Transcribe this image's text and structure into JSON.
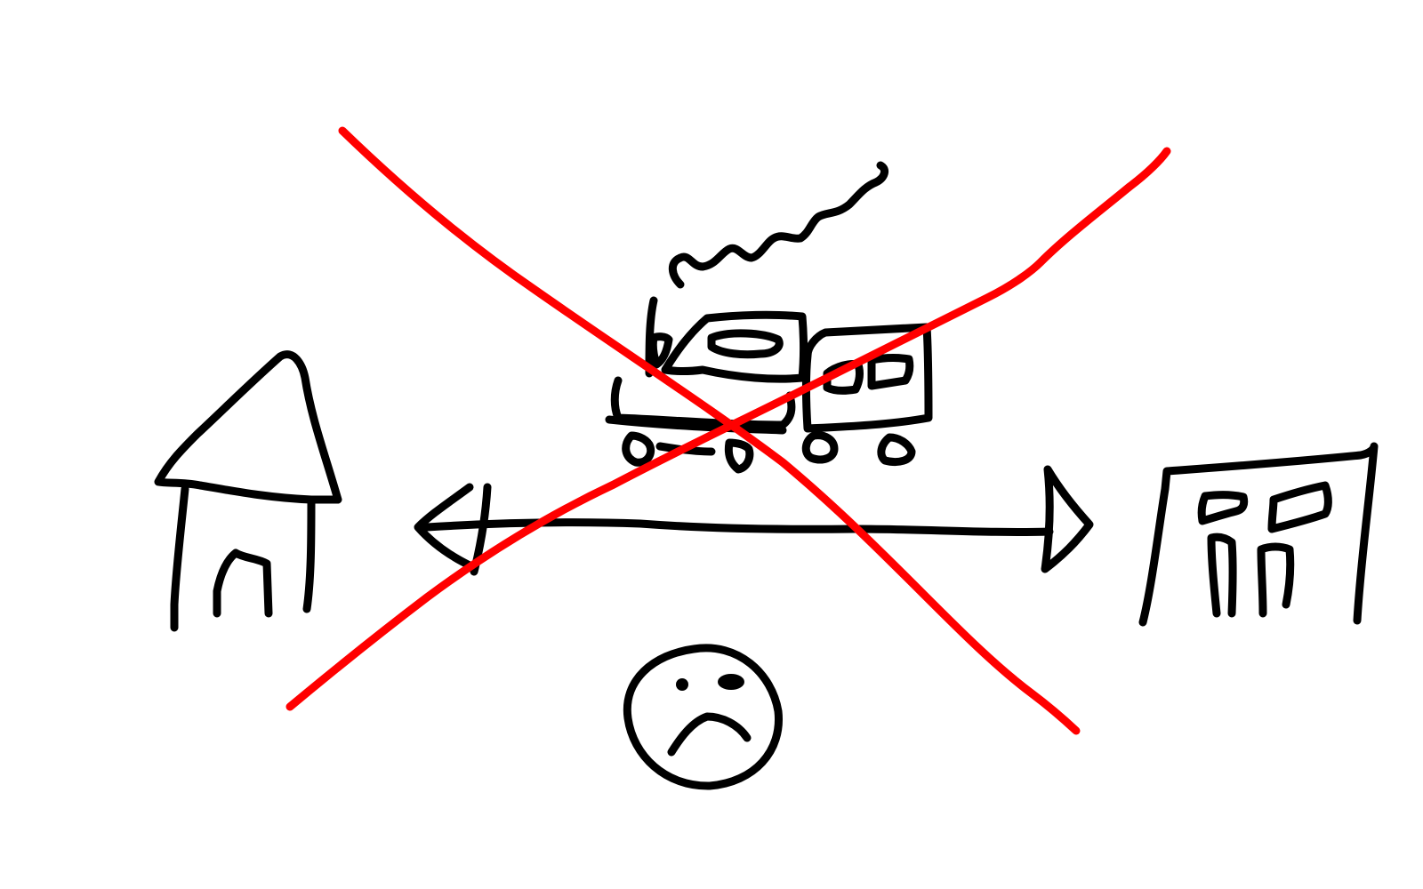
{
  "drawing": {
    "elements": [
      {
        "name": "house",
        "kind": "sketch"
      },
      {
        "name": "bidirectional-arrow",
        "kind": "sketch"
      },
      {
        "name": "office-building",
        "kind": "sketch"
      },
      {
        "name": "train-with-smoke",
        "kind": "sketch"
      },
      {
        "name": "sad-face",
        "kind": "sketch"
      },
      {
        "name": "red-cross-out",
        "kind": "sketch"
      }
    ],
    "colors": {
      "ink": "#000000",
      "cross": "#ff0000",
      "background": "#ffffff"
    }
  }
}
